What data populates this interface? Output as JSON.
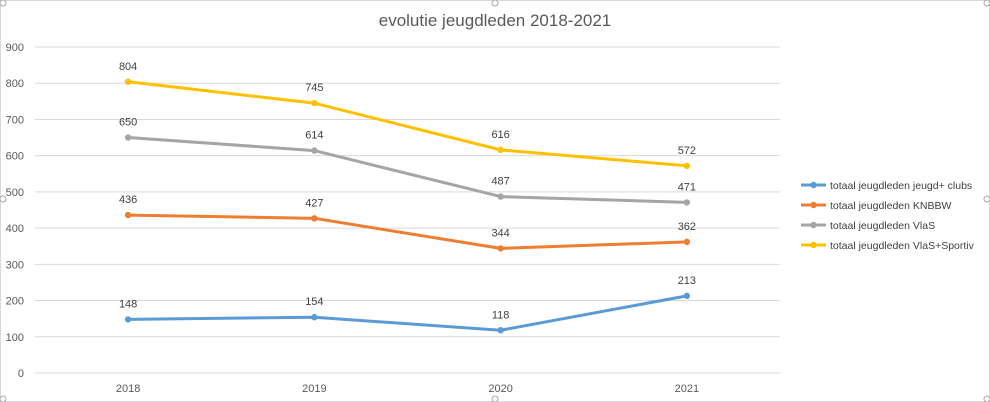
{
  "chart_data": {
    "type": "line",
    "title": "evolutie jeugdleden 2018-2021",
    "xlabel": "",
    "ylabel": "",
    "categories": [
      "2018",
      "2019",
      "2020",
      "2021"
    ],
    "ylim": [
      0,
      900
    ],
    "yticks": [
      0,
      100,
      200,
      300,
      400,
      500,
      600,
      700,
      800,
      900
    ],
    "grid": true,
    "legend_position": "right",
    "series": [
      {
        "name": "totaal jeugdleden jeugd+ clubs",
        "values": [
          148,
          154,
          118,
          213
        ],
        "color": "#5b9bd5"
      },
      {
        "name": "totaal jeugdleden KNBBW",
        "values": [
          436,
          427,
          344,
          362
        ],
        "color": "#ed7d31"
      },
      {
        "name": "totaal jeugdleden VlaS",
        "values": [
          650,
          614,
          487,
          471
        ],
        "color": "#a5a5a5"
      },
      {
        "name": "totaal jeugdleden VlaS+Sportiv",
        "values": [
          804,
          745,
          616,
          572
        ],
        "color": "#ffc000"
      }
    ]
  }
}
